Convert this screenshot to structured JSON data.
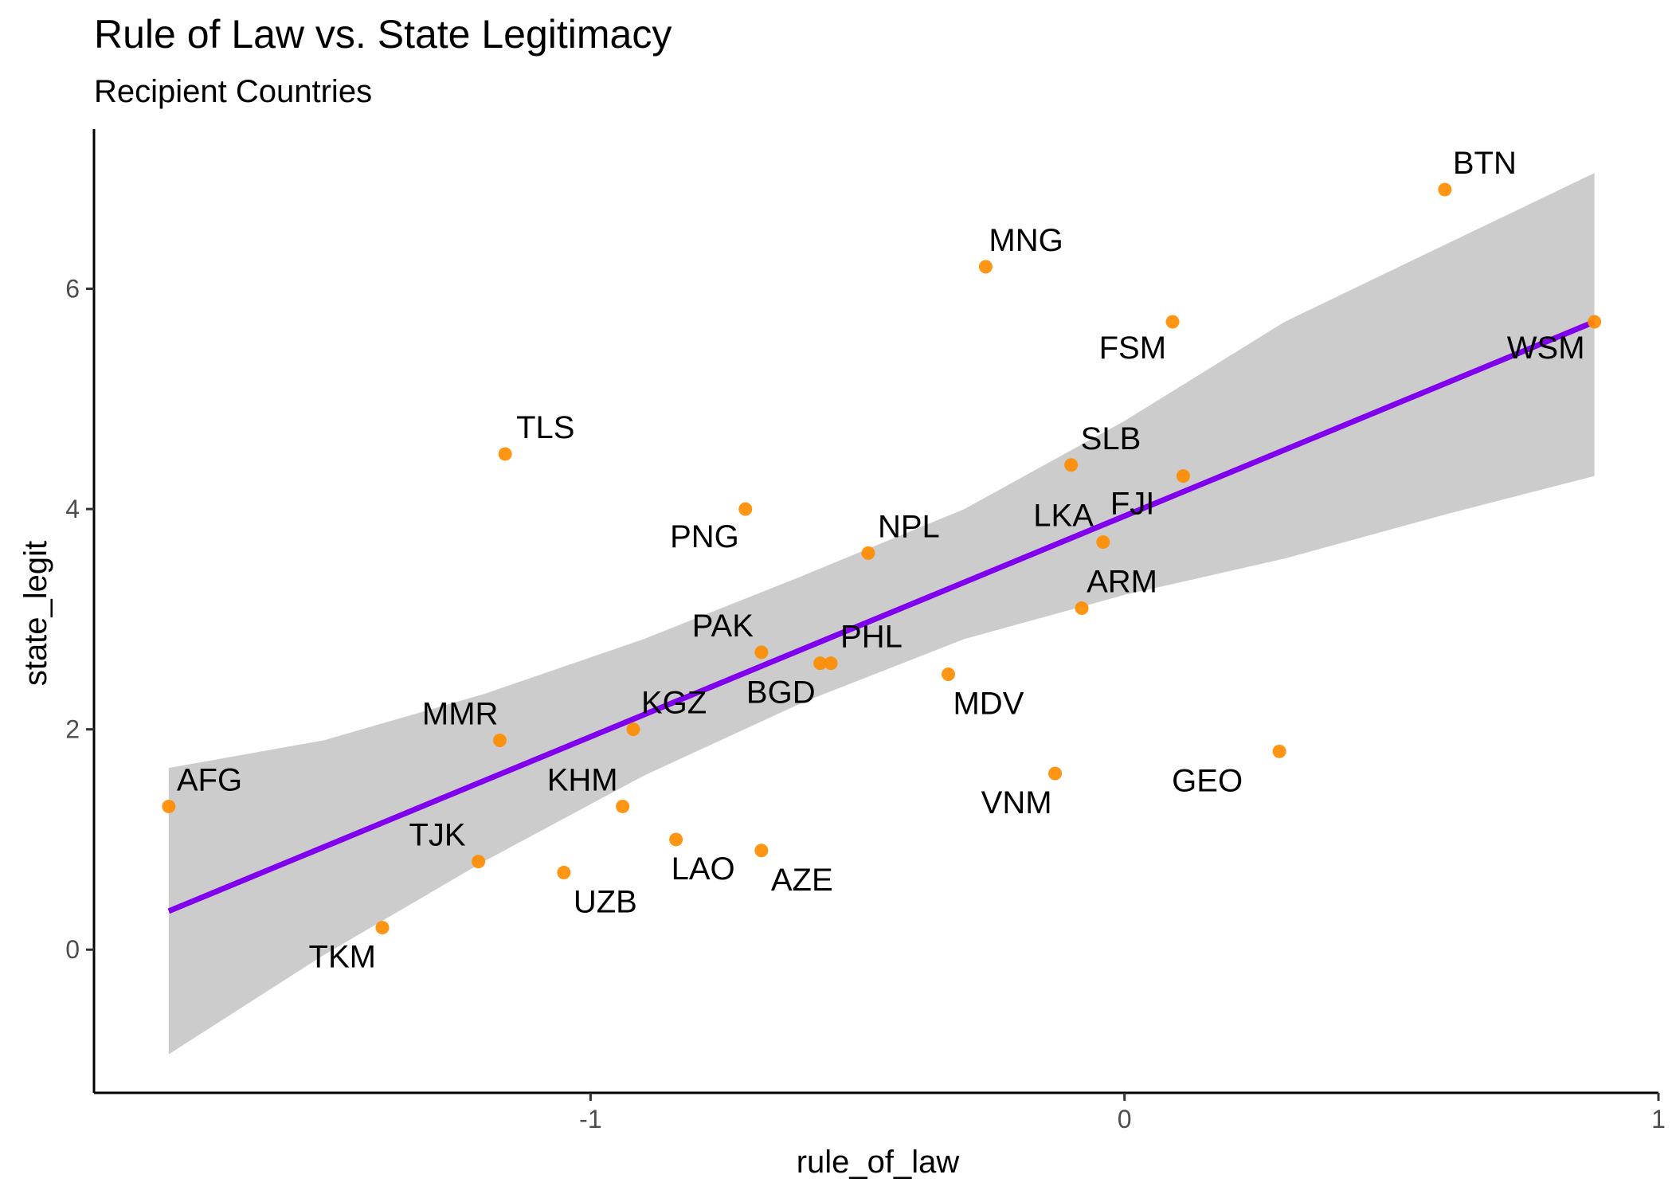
{
  "chart_data": {
    "type": "scatter",
    "title": "Rule of Law vs. State Legitimacy",
    "subtitle": "Recipient Countries",
    "xlabel": "rule_of_law",
    "ylabel": "state_legit",
    "xlim": [
      -1.93,
      1.0
    ],
    "ylim": [
      -1.3,
      7.45
    ],
    "x_ticks": [
      -1,
      0,
      1
    ],
    "x_tick_labels": [
      "-1",
      "0",
      "1"
    ],
    "y_ticks": [
      0,
      2,
      4,
      6
    ],
    "y_tick_labels": [
      "0",
      "2",
      "4",
      "6"
    ],
    "grid": false,
    "point_color": "#ff8c00",
    "regression_line_color": "#8000ee",
    "confidence_band_color": "#cccccc",
    "regression": {
      "method": "lm",
      "x_range": [
        -1.79,
        0.88
      ],
      "y_at_start": 0.35,
      "y_at_end": 5.7
    },
    "confidence_band": {
      "x": [
        -1.79,
        -1.5,
        -1.2,
        -0.9,
        -0.6,
        -0.3,
        0.0,
        0.3,
        0.6,
        0.88
      ],
      "lower": [
        -0.95,
        -0.05,
        0.8,
        1.58,
        2.25,
        2.82,
        3.22,
        3.55,
        3.95,
        4.3
      ],
      "upper": [
        1.65,
        1.9,
        2.32,
        2.82,
        3.4,
        4.0,
        4.8,
        5.7,
        6.4,
        7.05
      ]
    },
    "points": [
      {
        "label": "BTN",
        "x": 0.6,
        "y": 6.9
      },
      {
        "label": "MNG",
        "x": -0.26,
        "y": 6.2
      },
      {
        "label": "FSM",
        "x": 0.09,
        "y": 5.7
      },
      {
        "label": "WSM",
        "x": 0.88,
        "y": 5.7
      },
      {
        "label": "TLS",
        "x": -1.16,
        "y": 4.5
      },
      {
        "label": "SLB",
        "x": -0.1,
        "y": 4.4
      },
      {
        "label": "FJI",
        "x": 0.11,
        "y": 4.3
      },
      {
        "label": "PNG",
        "x": -0.71,
        "y": 4.0
      },
      {
        "label": "LKA",
        "x": -0.04,
        "y": 3.7
      },
      {
        "label": "NPL",
        "x": -0.48,
        "y": 3.6
      },
      {
        "label": "ARM",
        "x": -0.08,
        "y": 3.1
      },
      {
        "label": "PAK",
        "x": -0.68,
        "y": 2.7
      },
      {
        "label": "BGD",
        "x": -0.57,
        "y": 2.6
      },
      {
        "label": "PHL",
        "x": -0.55,
        "y": 2.6
      },
      {
        "label": "MDV",
        "x": -0.33,
        "y": 2.5
      },
      {
        "label": "KGZ",
        "x": -0.92,
        "y": 2.0
      },
      {
        "label": "MMR",
        "x": -1.17,
        "y": 1.9
      },
      {
        "label": "GEO",
        "x": 0.29,
        "y": 1.8
      },
      {
        "label": "VNM",
        "x": -0.13,
        "y": 1.6
      },
      {
        "label": "AFG",
        "x": -1.79,
        "y": 1.3
      },
      {
        "label": "KHM",
        "x": -0.94,
        "y": 1.3
      },
      {
        "label": "LAO",
        "x": -0.84,
        "y": 1.0
      },
      {
        "label": "AZE",
        "x": -0.68,
        "y": 0.9
      },
      {
        "label": "TJK",
        "x": -1.21,
        "y": 0.8
      },
      {
        "label": "UZB",
        "x": -1.05,
        "y": 0.7
      },
      {
        "label": "TKM",
        "x": -1.39,
        "y": 0.2
      }
    ]
  }
}
